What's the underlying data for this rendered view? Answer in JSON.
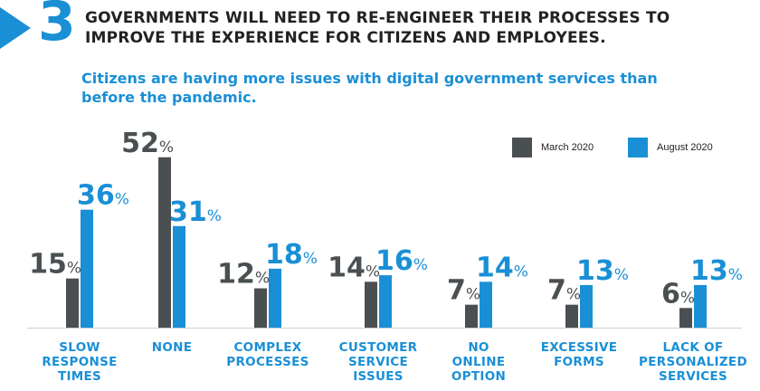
{
  "header": {
    "number": "3",
    "headline": "GOVERNMENTS WILL NEED TO RE-ENGINEER THEIR PROCESSES TO IMPROVE THE EXPERIENCE FOR CITIZENS AND EMPLOYEES.",
    "subtitle": "Citizens are having more issues with digital government services than before the pandemic."
  },
  "colors": {
    "march": "#4a4f52",
    "august": "#1a8fd6",
    "accent": "#1a8fd6"
  },
  "chart_data": {
    "type": "bar",
    "title": "Citizens are having more issues with digital government services than before the pandemic.",
    "categories": [
      "SLOW RESPONSE TIMES",
      "NONE",
      "COMPLEX PROCESSES",
      "CUSTOMER SERVICE ISSUES",
      "NO ONLINE OPTION",
      "EXCESSIVE FORMS",
      "LACK OF PERSONALIZED SERVICES"
    ],
    "category_lines": [
      [
        "SLOW",
        "RESPONSE",
        "TIMES"
      ],
      [
        "NONE"
      ],
      [
        "COMPLEX",
        "PROCESSES"
      ],
      [
        "CUSTOMER",
        "SERVICE",
        "ISSUES"
      ],
      [
        "NO",
        "ONLINE",
        "OPTION"
      ],
      [
        "EXCESSIVE",
        "FORMS"
      ],
      [
        "LACK OF",
        "PERSONALIZED",
        "SERVICES"
      ]
    ],
    "series": [
      {
        "name": "March 2020",
        "values": [
          15,
          52,
          12,
          14,
          7,
          7,
          6
        ]
      },
      {
        "name": "August 2020",
        "values": [
          36,
          31,
          18,
          16,
          14,
          13,
          13
        ]
      }
    ],
    "unit": "%",
    "legend": "top-right",
    "ylim": [
      0,
      60
    ],
    "xlabel": "",
    "ylabel": ""
  }
}
